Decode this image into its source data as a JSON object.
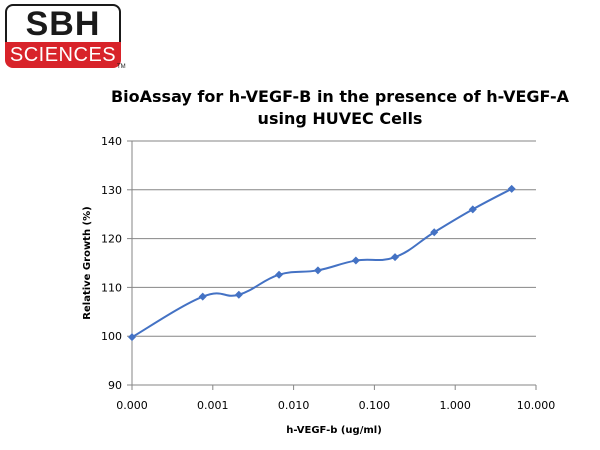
{
  "logo": {
    "top": "SBH",
    "bottom": "SCIENCES",
    "tm": "TM"
  },
  "chart_data": {
    "type": "line",
    "title": "BioAssay for h-VEGF-B in the presence of h-VEGF-A using HUVEC Cells",
    "title_lines": [
      "BioAssay for h-VEGF-B in the presence of h-VEGF-A",
      "using HUVEC Cells"
    ],
    "xlabel": "h-VEGF-b (ug/ml)",
    "ylabel": "Relative Growth (%)",
    "x_scale": "log",
    "x_ticks": [
      "0.000",
      "0.001",
      "0.010",
      "0.100",
      "1.000",
      "10.000"
    ],
    "y_ticks": [
      "90",
      "100",
      "110",
      "120",
      "130",
      "140"
    ],
    "ylim": [
      90,
      140
    ],
    "grid": true,
    "legend": "none",
    "line_color": "#4472c4",
    "marker": "diamond",
    "series": [
      {
        "x": [
          0.0001,
          0.00075,
          0.0021,
          0.0066,
          0.02,
          0.059,
          0.18,
          0.55,
          1.65,
          5.0
        ],
        "y": [
          99.8,
          108.1,
          108.5,
          112.6,
          113.5,
          115.5,
          116.2,
          121.3,
          126.0,
          130.2
        ]
      }
    ]
  }
}
